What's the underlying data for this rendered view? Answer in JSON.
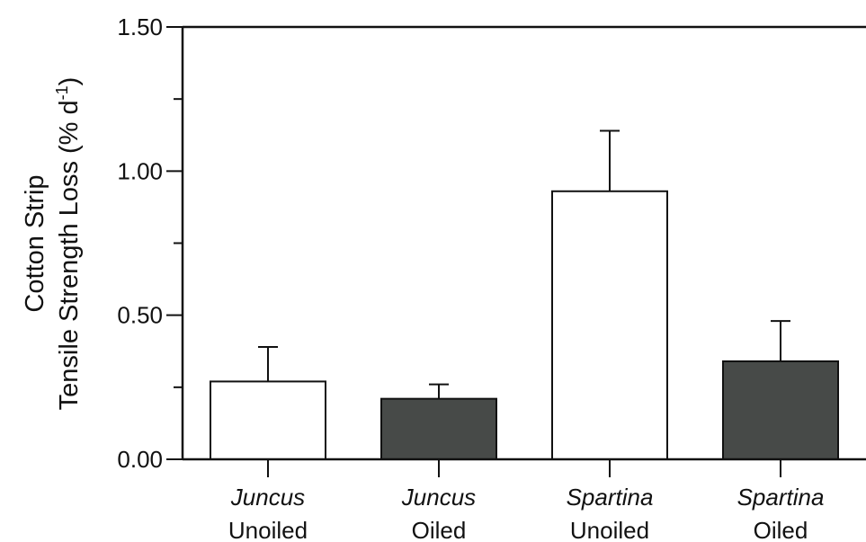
{
  "chart_data": {
    "type": "bar",
    "ylabel_line1": "Cotton Strip",
    "ylabel_line2_prefix": "Tensile Strength Loss (% d",
    "ylabel_line2_sup": "-1",
    "ylabel_line2_suffix": ")",
    "ylim": [
      0,
      1.5
    ],
    "yticks": [
      0.0,
      0.5,
      1.0,
      1.5
    ],
    "ytick_labels": [
      "0.00",
      "0.50",
      "1.00",
      "1.50"
    ],
    "categories": [
      {
        "line1": "Juncus",
        "line2": "Unoiled",
        "value": 0.27,
        "error": 0.12,
        "fill": "#ffffff"
      },
      {
        "line1": "Juncus",
        "line2": "Oiled",
        "value": 0.21,
        "error": 0.05,
        "fill": "#474a48"
      },
      {
        "line1": "Spartina",
        "line2": "Unoiled",
        "value": 0.93,
        "error": 0.21,
        "fill": "#ffffff"
      },
      {
        "line1": "Spartina",
        "line2": "Oiled",
        "value": 0.34,
        "error": 0.14,
        "fill": "#474a48"
      }
    ],
    "grid": false,
    "legend": "none"
  }
}
